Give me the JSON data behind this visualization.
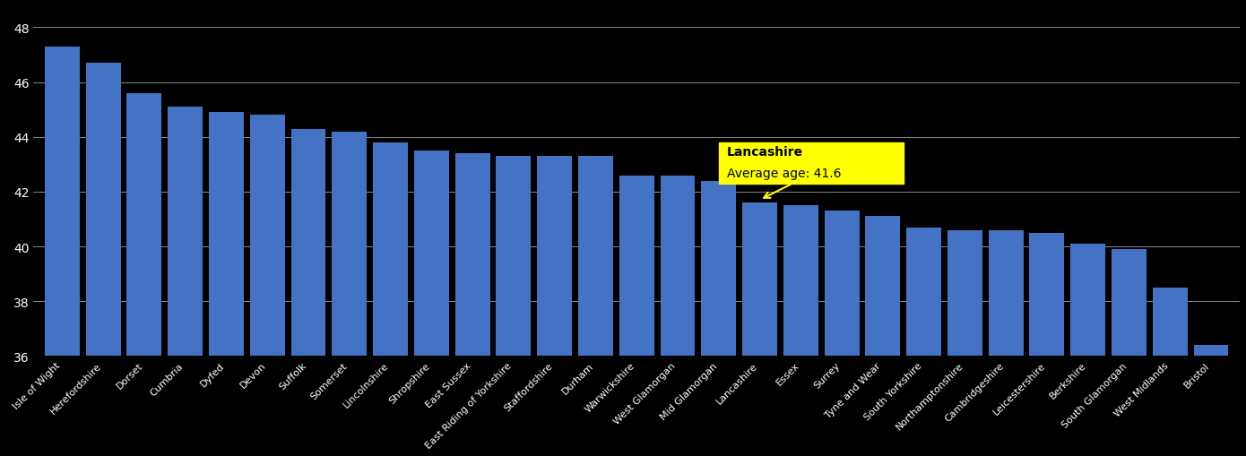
{
  "categories": [
    "Isle of Wight",
    "Herefordshire",
    "Dorset",
    "Cumbria",
    "Dyfed",
    "Devon",
    "Suffolk",
    "Somerset",
    "Lincolnshire",
    "Shropshire",
    "East Sussex",
    "East Riding of Yorkshire",
    "Staffordshire",
    "Durham",
    "Warwickshire",
    "West Glamorgan",
    "Mid Glamorgan",
    "Lancashire",
    "Essex",
    "Surrey",
    "Tyne and Wear",
    "South Yorkshire",
    "Northamptonshire",
    "Cambridgeshire",
    "Leicestershire",
    "Berkshire",
    "South Glamorgan",
    "West Midlands",
    "Bristol"
  ],
  "values": [
    47.3,
    46.7,
    45.6,
    45.1,
    44.9,
    44.8,
    44.3,
    44.2,
    43.8,
    43.5,
    43.4,
    43.3,
    43.3,
    43.3,
    42.6,
    42.6,
    42.4,
    41.6,
    41.5,
    41.3,
    41.1,
    40.7,
    40.6,
    40.6,
    40.5,
    40.1,
    39.9,
    38.5,
    36.4
  ],
  "highlight_index": 17,
  "highlight_label": "Lancashire",
  "highlight_value": 41.6,
  "bar_color": "#4472c4",
  "background_color": "#000000",
  "text_color": "#ffffff",
  "annotation_bg": "#ffff00",
  "annotation_text_color": "#000000",
  "ylim": [
    36,
    48.8
  ],
  "yticks": [
    36,
    38,
    40,
    42,
    44,
    46,
    48
  ],
  "grid_color": "#888888"
}
